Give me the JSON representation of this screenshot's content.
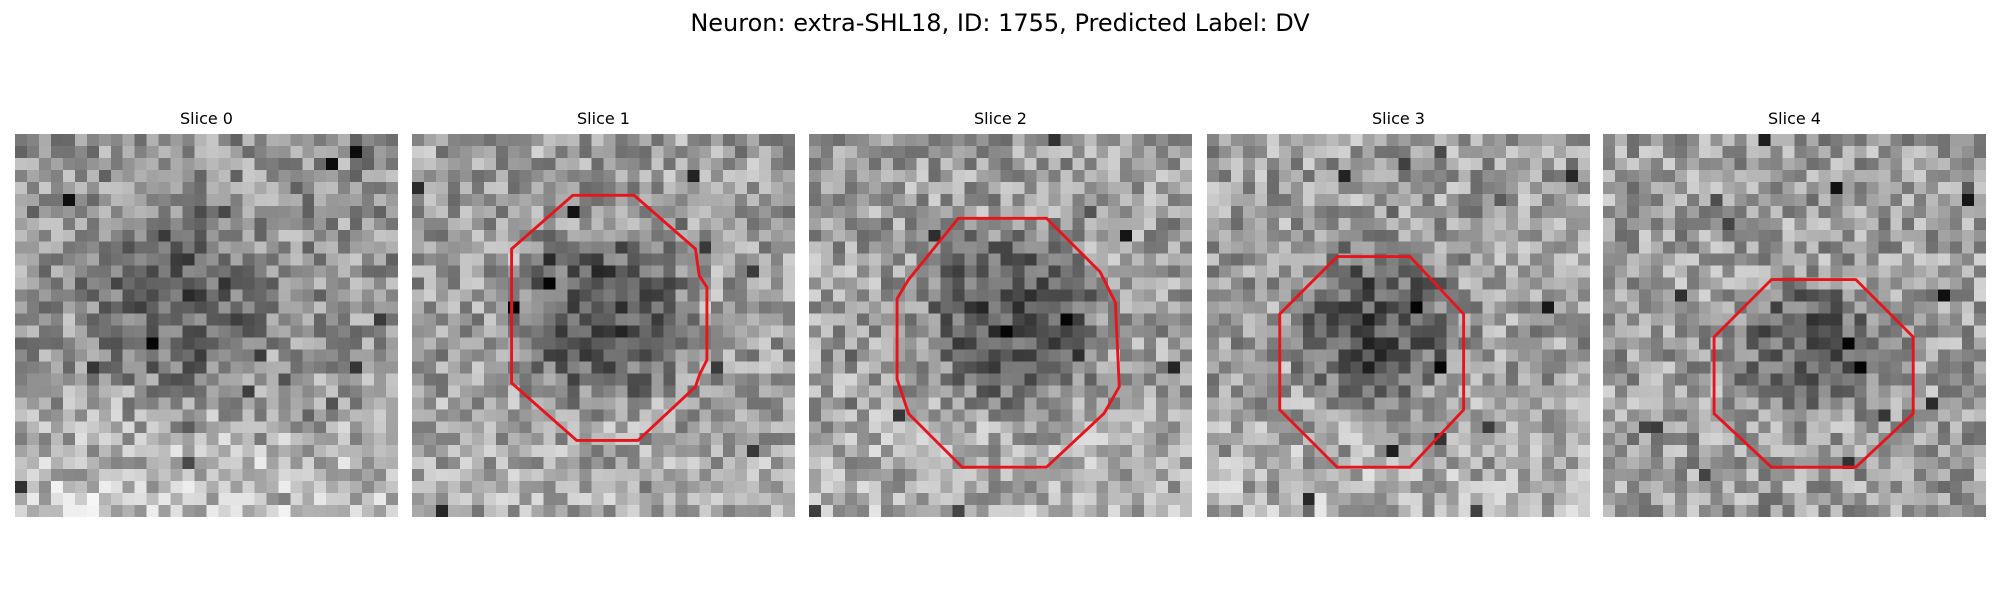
{
  "figure": {
    "title": "Neuron: extra-SHL18, ID: 1755, Predicted Label: DV"
  },
  "grid_size": 32,
  "contour_color": "#e8141b",
  "panels": [
    {
      "title": "Slice 0",
      "image_description": "grayscale noisy patch, darker region in upper-middle, lighter bottom",
      "has_contour": false,
      "dark_center": [
        0.42,
        0.42
      ],
      "dark_radius": 0.28,
      "dark_strength": 0.22,
      "base_level": 0.58,
      "bottom_light": 0.2,
      "seed": 11
    },
    {
      "title": "Slice 1",
      "image_description": "grayscale noisy patch with dark soma outlined by red octagon",
      "has_contour": true,
      "contour": [
        [
          0.42,
          0.16
        ],
        [
          0.58,
          0.16
        ],
        [
          0.74,
          0.3
        ],
        [
          0.75,
          0.37
        ],
        [
          0.77,
          0.4
        ],
        [
          0.77,
          0.59
        ],
        [
          0.75,
          0.63
        ],
        [
          0.74,
          0.66
        ],
        [
          0.59,
          0.8
        ],
        [
          0.43,
          0.8
        ],
        [
          0.26,
          0.65
        ],
        [
          0.26,
          0.3
        ]
      ],
      "dark_center": [
        0.5,
        0.47
      ],
      "dark_radius": 0.27,
      "dark_strength": 0.32,
      "base_level": 0.62,
      "bottom_light": 0.05,
      "seed": 23
    },
    {
      "title": "Slice 2",
      "image_description": "grayscale noisy patch with dark soma outlined by red octagon",
      "has_contour": true,
      "contour": [
        [
          0.39,
          0.22
        ],
        [
          0.62,
          0.22
        ],
        [
          0.76,
          0.36
        ],
        [
          0.8,
          0.44
        ],
        [
          0.81,
          0.66
        ],
        [
          0.77,
          0.73
        ],
        [
          0.62,
          0.87
        ],
        [
          0.4,
          0.87
        ],
        [
          0.26,
          0.73
        ],
        [
          0.23,
          0.64
        ],
        [
          0.23,
          0.43
        ],
        [
          0.26,
          0.38
        ]
      ],
      "dark_center": [
        0.53,
        0.48
      ],
      "dark_radius": 0.28,
      "dark_strength": 0.3,
      "base_level": 0.62,
      "bottom_light": 0.08,
      "seed": 37
    },
    {
      "title": "Slice 3",
      "image_description": "grayscale noisy patch with dark soma outlined by red octagon",
      "has_contour": true,
      "contour": [
        [
          0.34,
          0.32
        ],
        [
          0.53,
          0.32
        ],
        [
          0.67,
          0.47
        ],
        [
          0.67,
          0.72
        ],
        [
          0.53,
          0.87
        ],
        [
          0.34,
          0.87
        ],
        [
          0.19,
          0.72
        ],
        [
          0.19,
          0.47
        ]
      ],
      "dark_center": [
        0.44,
        0.5
      ],
      "dark_radius": 0.26,
      "dark_strength": 0.3,
      "base_level": 0.62,
      "bottom_light": 0.08,
      "seed": 51
    },
    {
      "title": "Slice 4",
      "image_description": "grayscale noisy patch with dark soma outlined by red octagon",
      "has_contour": true,
      "contour": [
        [
          0.44,
          0.38
        ],
        [
          0.66,
          0.38
        ],
        [
          0.81,
          0.53
        ],
        [
          0.81,
          0.73
        ],
        [
          0.66,
          0.87
        ],
        [
          0.44,
          0.87
        ],
        [
          0.29,
          0.73
        ],
        [
          0.29,
          0.53
        ]
      ],
      "dark_center": [
        0.53,
        0.56
      ],
      "dark_radius": 0.22,
      "dark_strength": 0.26,
      "base_level": 0.62,
      "bottom_light": 0.0,
      "seed": 67
    }
  ]
}
